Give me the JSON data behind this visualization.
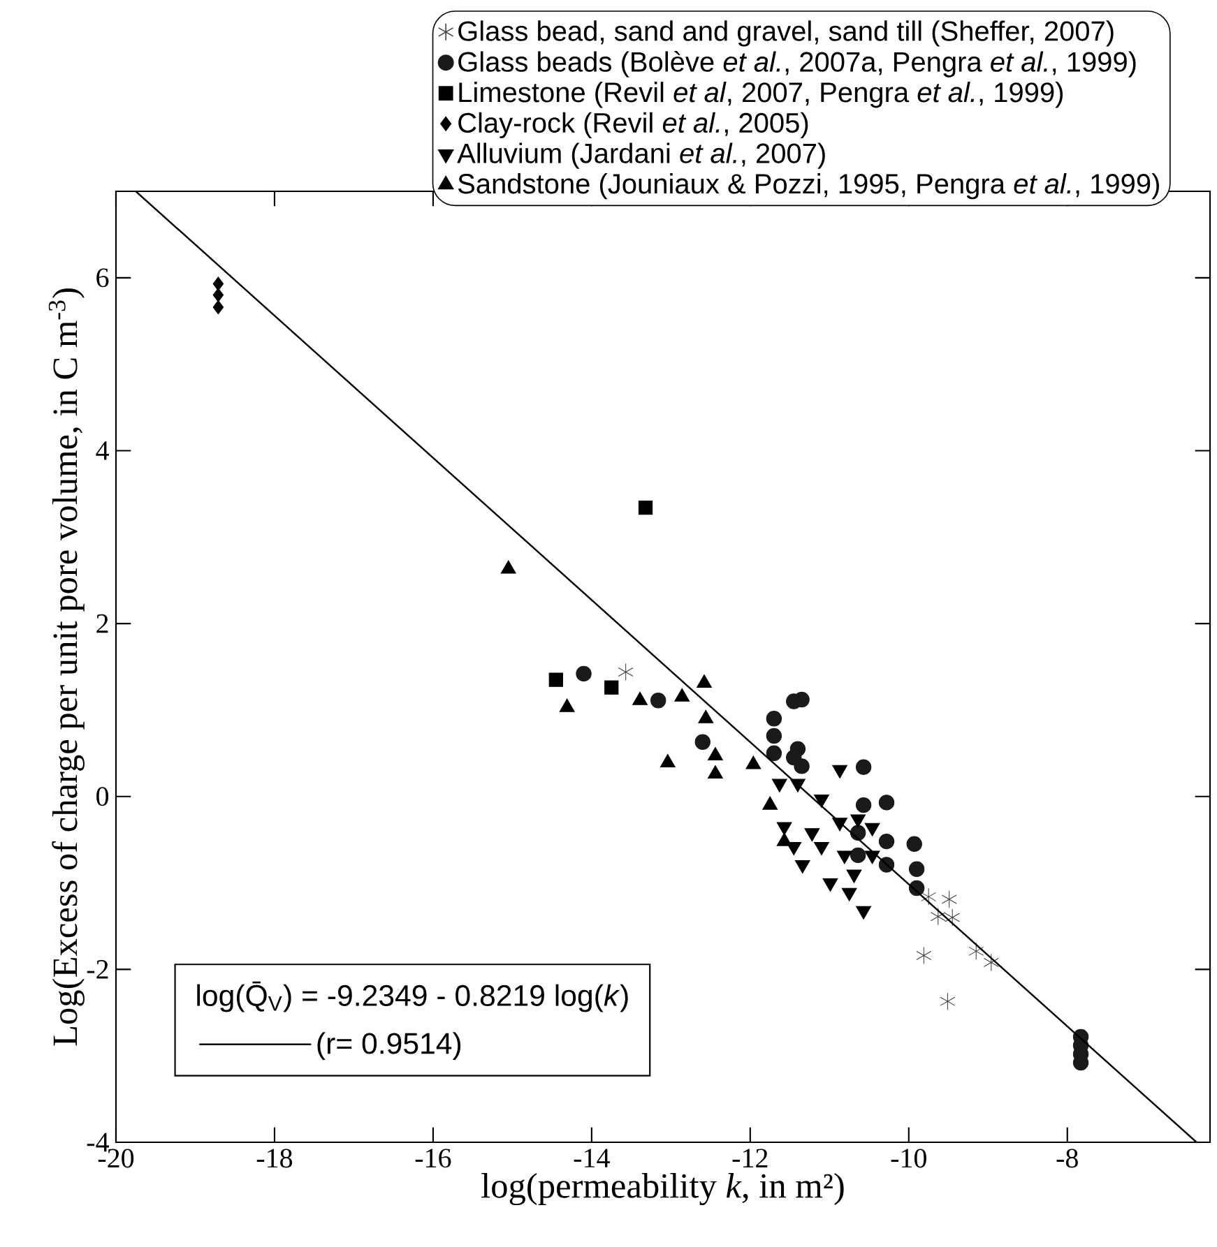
{
  "chart_data": {
    "type": "scatter",
    "xlabel": "log(permeability *k*, in m²)",
    "ylabel": "Log(Excess of charge per unit pore volume, in C m$^{-3}$)",
    "xlim": [
      -20,
      -6.2
    ],
    "xticks": [
      -20,
      -18,
      -16,
      -14,
      -12,
      -10,
      -8
    ],
    "ylim": [
      -4,
      7
    ],
    "yticks": [
      -4,
      -2,
      0,
      2,
      4,
      6
    ],
    "legend": "top right",
    "annotations": [
      "log(Q̄$_{V}$) = -9.2349 - 0.8219 log(*k*)"
    ],
    "series": [
      {
        "name": "Glass bead, sand and gravel, sand till (Sheffer, 2007)",
        "type": "scatter",
        "marker": "cross",
        "color": "#404040",
        "x": [
          -13.57,
          -9.75,
          -9.49,
          -9.63,
          -9.45,
          -9.81,
          -9.15,
          -8.96,
          -9.51
        ],
        "values": [
          1.44,
          -1.16,
          -1.19,
          -1.39,
          -1.4,
          -1.84,
          -1.79,
          -1.92,
          -2.37
        ]
      },
      {
        "name": "Glass beads (Bolève *et al.*, 2007a, Pengra *et al.*, 1999)",
        "type": "scatter",
        "marker": "circle",
        "color": "#1a1a1a",
        "x": [
          -14.1,
          -13.16,
          -12.6,
          -11.7,
          -11.7,
          -11.7,
          -11.45,
          -11.35,
          -11.4,
          -11.35,
          -11.4,
          -11.45,
          -10.57,
          -10.57,
          -10.28,
          -10.28,
          -9.93,
          -9.9,
          -9.9,
          -10.28,
          -10.64,
          -10.64,
          -7.83,
          -7.83,
          -7.83,
          -7.83
        ],
        "values": [
          1.42,
          1.11,
          0.63,
          0.9,
          0.7,
          0.5,
          1.1,
          1.12,
          0.55,
          0.35,
          null,
          0.45,
          0.34,
          -0.1,
          -0.07,
          -0.52,
          -0.55,
          -0.84,
          -1.06,
          -0.79,
          -0.42,
          -0.68,
          -2.78,
          -2.88,
          -2.98,
          -3.08
        ]
      },
      {
        "name": "Limestone (Revil *et al*, 2007, Pengra *et al.*, 1999)",
        "type": "scatter",
        "marker": "square",
        "color": "#000000",
        "x": [
          -14.45,
          -13.75,
          -13.32
        ],
        "values": [
          1.35,
          1.26,
          3.34
        ]
      },
      {
        "name": "Clay-rock (Revil *et al.*, 2005)",
        "type": "scatter",
        "marker": "diamond",
        "color": "#000000",
        "x": [
          -18.71,
          -18.71,
          -18.71
        ],
        "values": [
          5.93,
          5.8,
          5.66
        ]
      },
      {
        "name": "Alluvium (Jardani *et al.*, 2007)",
        "type": "scatter",
        "marker": "triangle-down",
        "color": "#000000",
        "x": [
          -10.87,
          -11.63,
          -11.4,
          -11.1,
          -11.57,
          -11.34,
          -10.99,
          -10.57,
          -10.75,
          -10.87,
          -10.64,
          -11.1,
          -10.81,
          -10.46,
          -10.46,
          -11.22,
          -11.45,
          -10.69
        ],
        "values": [
          0.31,
          0.15,
          0.15,
          -0.03,
          -0.35,
          -0.79,
          -1.0,
          -1.32,
          -1.11,
          -0.3,
          -0.26,
          -0.58,
          -0.68,
          -0.36,
          -0.68,
          -0.42,
          -0.58,
          -0.9
        ]
      },
      {
        "name": "Sandstone (Jouniaux & Pozzi, 1995, Pengra *et al.*, 1999)",
        "type": "scatter",
        "marker": "triangle",
        "color": "#000000",
        "x": [
          -15.05,
          -14.31,
          -13.39,
          -12.86,
          -12.58,
          -12.56,
          -13.04,
          -12.44,
          -12.44,
          -11.96,
          -11.75,
          -11.57
        ],
        "values": [
          2.63,
          1.03,
          1.11,
          1.15,
          1.31,
          0.9,
          0.39,
          0.47,
          0.26,
          0.37,
          -0.1,
          -0.52
        ]
      },
      {
        "name": "(r= 0.9514)",
        "type": "line",
        "line_style": "solid",
        "color": "#000000",
        "x": [
          -19.75,
          -6.37
        ],
        "values": [
          7.0,
          -4.0
        ]
      }
    ]
  }
}
